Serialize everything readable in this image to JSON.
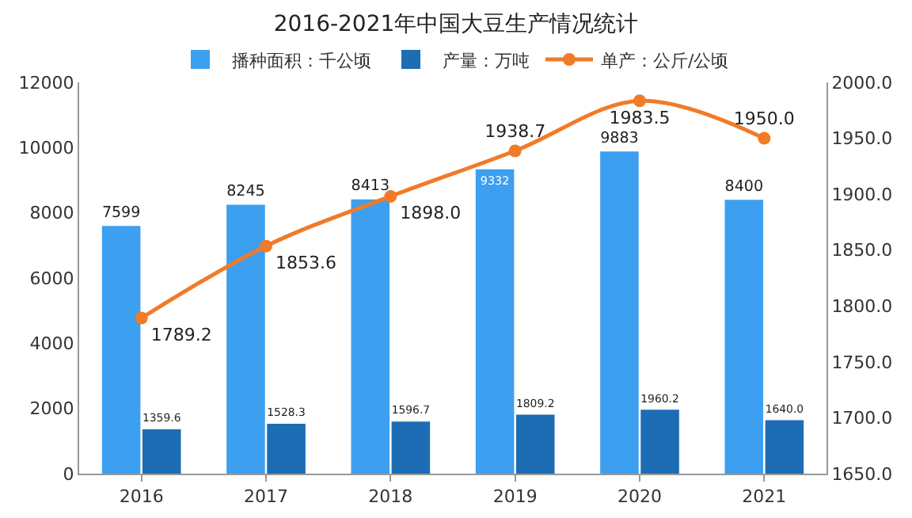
{
  "chart_data": {
    "type": "bar",
    "title": "2016-2021年中国大豆生产情况统计",
    "categories": [
      "2016",
      "2017",
      "2018",
      "2019",
      "2020",
      "2021"
    ],
    "series": [
      {
        "name": "播种面积：千公顷",
        "color": "#3d9ff0",
        "values": [
          7599,
          8245,
          8413,
          9332,
          9883,
          8400
        ],
        "value_labels": [
          "7599",
          "8245",
          "8413",
          "9332",
          "9883",
          "8400"
        ]
      },
      {
        "name": "产量：万吨",
        "color": "#1d6db4",
        "values": [
          1359.6,
          1528.3,
          1596.7,
          1809.2,
          1960.2,
          1640.0
        ],
        "value_labels": [
          "1359.6",
          "1528.3",
          "1596.7",
          "1809.2",
          "1960.2",
          "1640.0"
        ]
      },
      {
        "name": "单产：公斤/公顷",
        "type": "line",
        "axis": "y2",
        "color": "#f07b28",
        "marker": "circle",
        "values": [
          1789.2,
          1853.6,
          1898.0,
          1938.7,
          1983.5,
          1950.0
        ],
        "value_labels": [
          "1789.2",
          "1853.6",
          "1898.0",
          "1938.7",
          "1983.5",
          "1950.0"
        ]
      }
    ],
    "ylim": [
      0,
      12000
    ],
    "yticks": [
      0,
      2000,
      4000,
      6000,
      8000,
      10000,
      12000
    ],
    "y2lim": [
      1650,
      2000
    ],
    "y2ticks": [
      {
        "value": 1650,
        "label": "1650.0"
      },
      {
        "value": 1700,
        "label": "1700.0"
      },
      {
        "value": 1750,
        "label": "1750.0"
      },
      {
        "value": 1800,
        "label": "1800.0"
      },
      {
        "value": 1850,
        "label": "1850.0"
      },
      {
        "value": 1900,
        "label": "1900.0"
      },
      {
        "value": 1950,
        "label": "1950.0"
      },
      {
        "value": 2000,
        "label": "2000.0"
      }
    ],
    "legend": "top",
    "grid": false
  }
}
